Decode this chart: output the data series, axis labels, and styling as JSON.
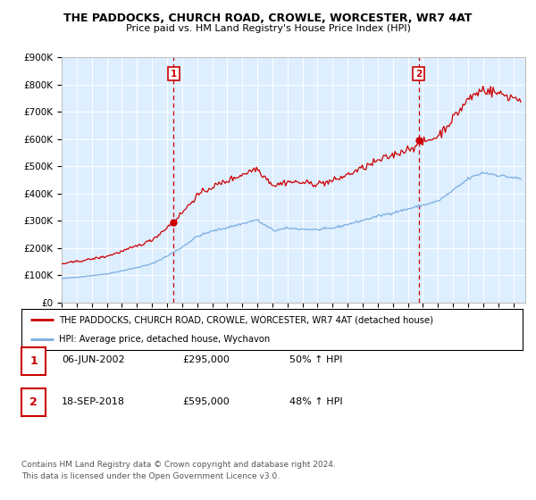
{
  "title": "THE PADDOCKS, CHURCH ROAD, CROWLE, WORCESTER, WR7 4AT",
  "subtitle": "Price paid vs. HM Land Registry's House Price Index (HPI)",
  "ylim": [
    0,
    900000
  ],
  "yticks": [
    0,
    100000,
    200000,
    300000,
    400000,
    500000,
    600000,
    700000,
    800000,
    900000
  ],
  "ytick_labels": [
    "£0",
    "£100K",
    "£200K",
    "£300K",
    "£400K",
    "£500K",
    "£600K",
    "£700K",
    "£800K",
    "£900K"
  ],
  "xlim_start": 1995.0,
  "xlim_end": 2025.8,
  "sale1_x": 2002.44,
  "sale1_y": 295000,
  "sale1_label": "1",
  "sale2_x": 2018.72,
  "sale2_y": 595000,
  "sale2_label": "2",
  "red_line_color": "#cc0000",
  "blue_line_color": "#7aade0",
  "marker_box_color": "#cc0000",
  "legend_line1": "THE PADDOCKS, CHURCH ROAD, CROWLE, WORCESTER, WR7 4AT (detached house)",
  "legend_line2": "HPI: Average price, detached house, Wychavon",
  "table_row1": [
    "1",
    "06-JUN-2002",
    "£295,000",
    "50% ↑ HPI"
  ],
  "table_row2": [
    "2",
    "18-SEP-2018",
    "£595,000",
    "48% ↑ HPI"
  ],
  "footer1": "Contains HM Land Registry data © Crown copyright and database right 2024.",
  "footer2": "This data is licensed under the Open Government Licence v3.0.",
  "bg_color": "#ffffff",
  "plot_bg_color": "#ddeeff"
}
